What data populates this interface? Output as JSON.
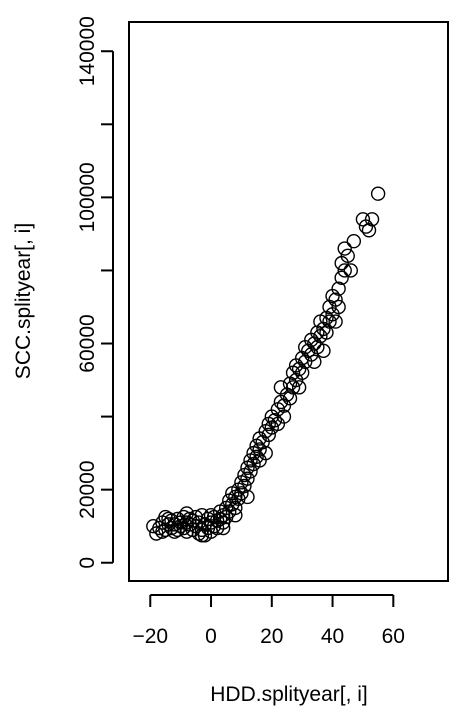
{
  "chart_data": {
    "type": "scatter",
    "xlabel": "HDD.splityear[, i]",
    "ylabel": "SCC.splityear[, i]",
    "xlim": [
      -27,
      78
    ],
    "ylim": [
      -5000,
      148000
    ],
    "xticks": [
      -20,
      0,
      20,
      40,
      60
    ],
    "xtick_labels": [
      "−20",
      "0",
      "20",
      "40",
      "60"
    ],
    "yticks": [
      0,
      20000,
      60000,
      100000,
      140000
    ],
    "ytick_labels": [
      "0",
      "20000",
      "60000",
      "100000",
      "140000"
    ],
    "yminor_ticks": [
      40000,
      80000,
      120000
    ],
    "grid": false,
    "marker": "open-circle",
    "series": [
      {
        "points": [
          [
            -19,
            10000
          ],
          [
            -18,
            8000
          ],
          [
            -17,
            9500
          ],
          [
            -16,
            8500
          ],
          [
            -16,
            11000
          ],
          [
            -15,
            9000
          ],
          [
            -14,
            10500
          ],
          [
            -14,
            12000
          ],
          [
            -13,
            9500
          ],
          [
            -13,
            11500
          ],
          [
            -12,
            8500
          ],
          [
            -12,
            10500
          ],
          [
            -11,
            12000
          ],
          [
            -11,
            9000
          ],
          [
            -10,
            11000
          ],
          [
            -10,
            10000
          ],
          [
            -9,
            12500
          ],
          [
            -9,
            9500
          ],
          [
            -8,
            11000
          ],
          [
            -8,
            8500
          ],
          [
            -7,
            10500
          ],
          [
            -7,
            12000
          ],
          [
            -6,
            9000
          ],
          [
            -6,
            11500
          ],
          [
            -5,
            10000
          ],
          [
            -5,
            12500
          ],
          [
            -4,
            8000
          ],
          [
            -4,
            11000
          ],
          [
            -3,
            9000
          ],
          [
            -3,
            13000
          ],
          [
            -2,
            10500
          ],
          [
            -2,
            7500
          ],
          [
            -1,
            12000
          ],
          [
            -1,
            9500
          ],
          [
            0,
            11000
          ],
          [
            0,
            13000
          ],
          [
            1,
            10000
          ],
          [
            1,
            12500
          ],
          [
            2,
            11500
          ],
          [
            2,
            9500
          ],
          [
            3,
            12000
          ],
          [
            3,
            14000
          ],
          [
            4,
            13000
          ],
          [
            4,
            11000
          ],
          [
            5,
            15000
          ],
          [
            5,
            12500
          ],
          [
            6,
            14000
          ],
          [
            6,
            17000
          ],
          [
            7,
            16000
          ],
          [
            7,
            19000
          ],
          [
            8,
            18000
          ],
          [
            8,
            15000
          ],
          [
            9,
            20000
          ],
          [
            9,
            17500
          ],
          [
            10,
            22000
          ],
          [
            10,
            19000
          ],
          [
            11,
            21000
          ],
          [
            11,
            24000
          ],
          [
            12,
            23000
          ],
          [
            12,
            26000
          ],
          [
            13,
            25000
          ],
          [
            13,
            28000
          ],
          [
            14,
            27000
          ],
          [
            14,
            30000
          ],
          [
            15,
            29000
          ],
          [
            15,
            32000
          ],
          [
            16,
            31000
          ],
          [
            16,
            34000
          ],
          [
            17,
            33000
          ],
          [
            18,
            36000
          ],
          [
            18,
            30000
          ],
          [
            19,
            35000
          ],
          [
            19,
            38000
          ],
          [
            20,
            37000
          ],
          [
            20,
            40000
          ],
          [
            21,
            39000
          ],
          [
            22,
            42000
          ],
          [
            22,
            38000
          ],
          [
            23,
            44000
          ],
          [
            23,
            48000
          ],
          [
            24,
            43000
          ],
          [
            25,
            46000
          ],
          [
            26,
            45000
          ],
          [
            26,
            49000
          ],
          [
            27,
            48000
          ],
          [
            27,
            52000
          ],
          [
            28,
            50000
          ],
          [
            28,
            54000
          ],
          [
            29,
            53000
          ],
          [
            30,
            56000
          ],
          [
            30,
            52000
          ],
          [
            31,
            55000
          ],
          [
            31,
            59000
          ],
          [
            32,
            58000
          ],
          [
            33,
            61000
          ],
          [
            33,
            57000
          ],
          [
            34,
            60000
          ],
          [
            35,
            63000
          ],
          [
            35,
            59000
          ],
          [
            36,
            62000
          ],
          [
            36,
            66000
          ],
          [
            37,
            64000
          ],
          [
            38,
            67000
          ],
          [
            38,
            63000
          ],
          [
            39,
            66000
          ],
          [
            39,
            70000
          ],
          [
            40,
            68000
          ],
          [
            40,
            73000
          ],
          [
            41,
            72000
          ],
          [
            42,
            75000
          ],
          [
            42,
            70000
          ],
          [
            43,
            78000
          ],
          [
            43,
            82000
          ],
          [
            44,
            80000
          ],
          [
            44,
            86000
          ],
          [
            45,
            84000
          ],
          [
            46,
            80000
          ],
          [
            47,
            88000
          ],
          [
            50,
            94000
          ],
          [
            51,
            92000
          ],
          [
            52,
            91000
          ],
          [
            53,
            94000
          ],
          [
            55,
            101000
          ],
          [
            -3,
            7500
          ],
          [
            0,
            8500
          ],
          [
            4,
            9500
          ],
          [
            8,
            13000
          ],
          [
            12,
            18000
          ],
          [
            16,
            28000
          ],
          [
            24,
            40000
          ],
          [
            29,
            48000
          ],
          [
            34,
            55000
          ],
          [
            37,
            58000
          ],
          [
            41,
            66000
          ],
          [
            -15,
            12500
          ],
          [
            -8,
            13500
          ]
        ]
      }
    ]
  }
}
